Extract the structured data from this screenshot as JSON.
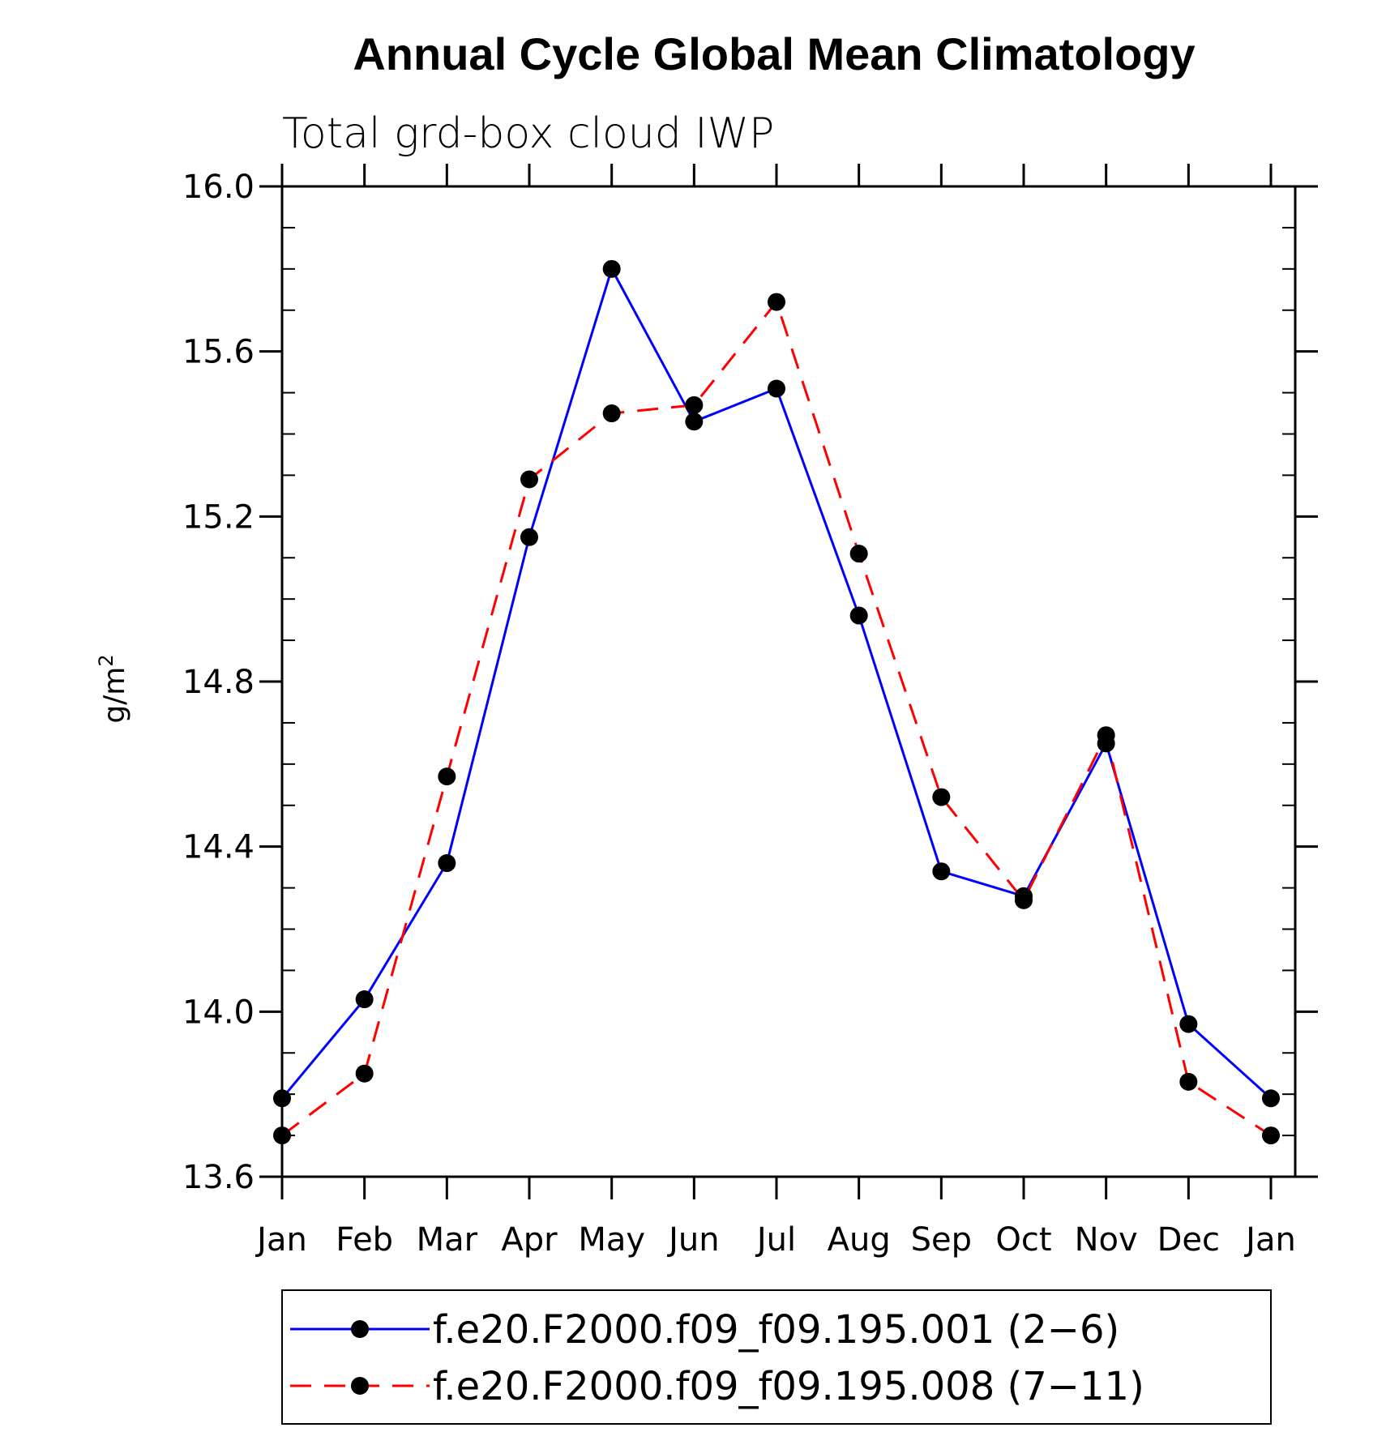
{
  "chart_data": {
    "type": "line",
    "title": "Annual Cycle Global Mean Climatology",
    "subtitle": "Total grd-box cloud IWP",
    "ylabel_base": "g/m",
    "ylabel_sup": "2",
    "xlabel": "",
    "ylim": [
      13.6,
      16.0
    ],
    "yticks": [
      "16.0",
      "15.6",
      "15.2",
      "14.8",
      "14.4",
      "14.0",
      "13.6"
    ],
    "ytick_values": [
      16.0,
      15.6,
      15.2,
      14.8,
      14.4,
      14.0,
      13.6
    ],
    "categories": [
      "Jan",
      "Feb",
      "Mar",
      "Apr",
      "May",
      "Jun",
      "Jul",
      "Aug",
      "Sep",
      "Oct",
      "Nov",
      "Dec",
      "Jan"
    ],
    "grid": false,
    "legend_position": "bottom",
    "series": [
      {
        "name": "f.e20.F2000.f09_f09.195.001 (2−6)",
        "color": "#0000ff",
        "style": "solid",
        "marker": "circle",
        "values": [
          13.79,
          14.03,
          14.36,
          15.15,
          15.8,
          15.43,
          15.51,
          14.96,
          14.34,
          14.28,
          14.65,
          13.97,
          13.79
        ]
      },
      {
        "name": "f.e20.F2000.f09_f09.195.008 (7−11)",
        "color": "#ff0000",
        "style": "dashed",
        "marker": "circle",
        "values": [
          13.7,
          13.85,
          14.57,
          15.29,
          15.45,
          15.47,
          15.72,
          15.11,
          14.52,
          14.27,
          14.67,
          13.83,
          13.7
        ]
      }
    ]
  }
}
